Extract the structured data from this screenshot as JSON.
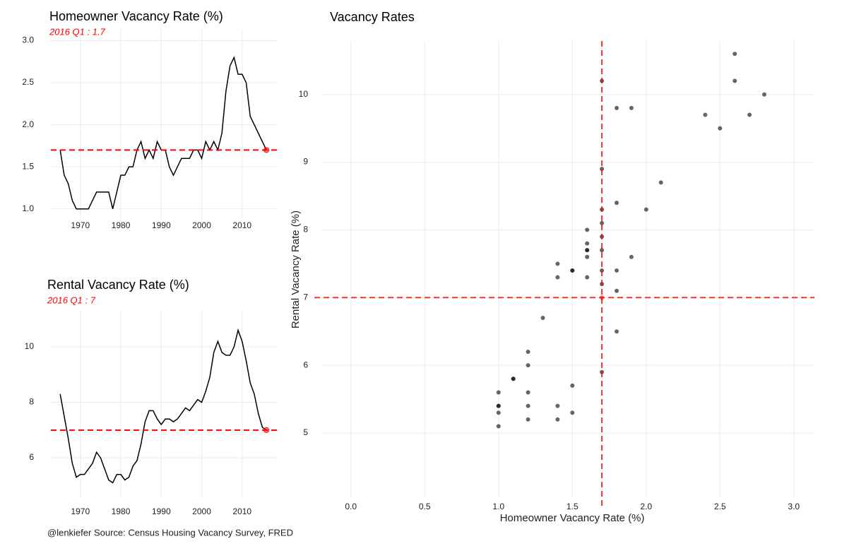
{
  "chart_data": [
    {
      "type": "line",
      "title": "Homeowner Vacancy Rate (%)",
      "subtitle": "2016 Q1 : 1.7",
      "color": "#000000",
      "reference_color": "#ff0000",
      "reference": 1.7,
      "x": [
        1965,
        1966,
        1967,
        1968,
        1969,
        1970,
        1971,
        1972,
        1973,
        1974,
        1975,
        1976,
        1977,
        1978,
        1979,
        1980,
        1981,
        1982,
        1983,
        1984,
        1985,
        1986,
        1987,
        1988,
        1989,
        1990,
        1991,
        1992,
        1993,
        1994,
        1995,
        1996,
        1997,
        1998,
        1999,
        2000,
        2001,
        2002,
        2003,
        2004,
        2005,
        2006,
        2007,
        2008,
        2009,
        2010,
        2011,
        2012,
        2013,
        2014,
        2015,
        2016
      ],
      "values": [
        1.7,
        1.4,
        1.3,
        1.1,
        1.0,
        1.0,
        1.0,
        1.0,
        1.1,
        1.2,
        1.2,
        1.2,
        1.2,
        1.0,
        1.2,
        1.4,
        1.4,
        1.5,
        1.5,
        1.7,
        1.8,
        1.6,
        1.7,
        1.6,
        1.8,
        1.7,
        1.7,
        1.5,
        1.4,
        1.5,
        1.6,
        1.6,
        1.6,
        1.7,
        1.7,
        1.6,
        1.8,
        1.7,
        1.8,
        1.7,
        1.9,
        2.4,
        2.7,
        2.8,
        2.6,
        2.6,
        2.5,
        2.1,
        2.0,
        1.9,
        1.8,
        1.7
      ],
      "xlim": [
        1962.7,
        2018.6
      ],
      "ylim": [
        0.88,
        3.13
      ],
      "xticks": [
        1970,
        1980,
        1990,
        2000,
        2010
      ],
      "yticks": [
        {
          "value": 1,
          "label": "1.0"
        },
        1.5,
        {
          "value": 2,
          "label": "2.0"
        },
        2.5,
        {
          "value": 3,
          "label": "3.0"
        }
      ],
      "grid": true
    },
    {
      "type": "line",
      "title": "Rental Vacancy Rate (%)",
      "subtitle": "2016 Q1 : 7",
      "color": "#000000",
      "reference_color": "#ff0000",
      "reference": 7,
      "x": [
        1965,
        1966,
        1967,
        1968,
        1969,
        1970,
        1971,
        1972,
        1973,
        1974,
        1975,
        1976,
        1977,
        1978,
        1979,
        1980,
        1981,
        1982,
        1983,
        1984,
        1985,
        1986,
        1987,
        1988,
        1989,
        1990,
        1991,
        1992,
        1993,
        1994,
        1995,
        1996,
        1997,
        1998,
        1999,
        2000,
        2001,
        2002,
        2003,
        2004,
        2005,
        2006,
        2007,
        2008,
        2009,
        2010,
        2011,
        2012,
        2013,
        2014,
        2015,
        2016
      ],
      "values": [
        8.3,
        7.5,
        6.7,
        5.8,
        5.3,
        5.4,
        5.4,
        5.6,
        5.8,
        6.2,
        6.0,
        5.6,
        5.2,
        5.1,
        5.4,
        5.4,
        5.2,
        5.3,
        5.7,
        5.9,
        6.5,
        7.3,
        7.7,
        7.7,
        7.4,
        7.2,
        7.4,
        7.4,
        7.3,
        7.4,
        7.6,
        7.8,
        7.7,
        7.9,
        8.1,
        8.0,
        8.4,
        8.9,
        9.8,
        10.2,
        9.8,
        9.7,
        9.7,
        10.0,
        10.6,
        10.2,
        9.5,
        8.7,
        8.3,
        7.6,
        7.1,
        7.0
      ],
      "xlim": [
        1962.7,
        2018.6
      ],
      "ylim": [
        4.55,
        11.3
      ],
      "xticks": [
        1970,
        1980,
        1990,
        2000,
        2010
      ],
      "yticks": [
        6,
        8,
        10
      ],
      "grid": true
    },
    {
      "type": "scatter",
      "title": "Vacancy Rates",
      "x_label": "Homeowner Vacancy Rate (%)",
      "y_label": "Rental Vacancy Rate (%)",
      "color": "#000000",
      "highlight_color": "#ff0000",
      "reference_color": "#ff0000",
      "reference_x": 1.7,
      "reference_y": 7,
      "x": [
        1.7,
        1.4,
        1.3,
        1.1,
        1.0,
        1.0,
        1.0,
        1.0,
        1.1,
        1.2,
        1.2,
        1.2,
        1.2,
        1.0,
        1.2,
        1.4,
        1.4,
        1.5,
        1.5,
        1.7,
        1.8,
        1.6,
        1.7,
        1.6,
        1.8,
        1.7,
        1.7,
        1.5,
        1.4,
        1.5,
        1.6,
        1.6,
        1.6,
        1.7,
        1.7,
        1.6,
        1.8,
        1.7,
        1.8,
        1.7,
        1.9,
        2.4,
        2.7,
        2.8,
        2.6,
        2.6,
        2.5,
        2.1,
        2.0,
        1.9,
        1.8,
        1.7
      ],
      "y": [
        8.3,
        7.5,
        6.7,
        5.8,
        5.3,
        5.4,
        5.4,
        5.6,
        5.8,
        6.2,
        6.0,
        5.6,
        5.2,
        5.1,
        5.4,
        5.4,
        5.2,
        5.3,
        5.7,
        5.9,
        6.5,
        7.3,
        7.7,
        7.7,
        7.4,
        7.2,
        7.4,
        7.4,
        7.3,
        7.4,
        7.6,
        7.8,
        7.7,
        7.9,
        8.1,
        8.0,
        8.4,
        8.9,
        9.8,
        10.2,
        9.8,
        9.7,
        9.7,
        10.0,
        10.6,
        10.2,
        9.5,
        8.7,
        8.3,
        7.6,
        7.1,
        7.0
      ],
      "xlim": [
        -0.19,
        3.14
      ],
      "ylim": [
        4.04,
        10.79
      ],
      "xticks": [
        {
          "value": 0,
          "label": "0.0"
        },
        0.5,
        {
          "value": 1,
          "label": "1.0"
        },
        1.5,
        {
          "value": 2,
          "label": "2.0"
        },
        2.5,
        {
          "value": 3,
          "label": "3.0"
        }
      ],
      "yticks": [
        5,
        6,
        7,
        8,
        9,
        10
      ],
      "grid": true
    }
  ],
  "caption": "@lenkiefer Source: Census Housing Vacancy Survey, FRED"
}
